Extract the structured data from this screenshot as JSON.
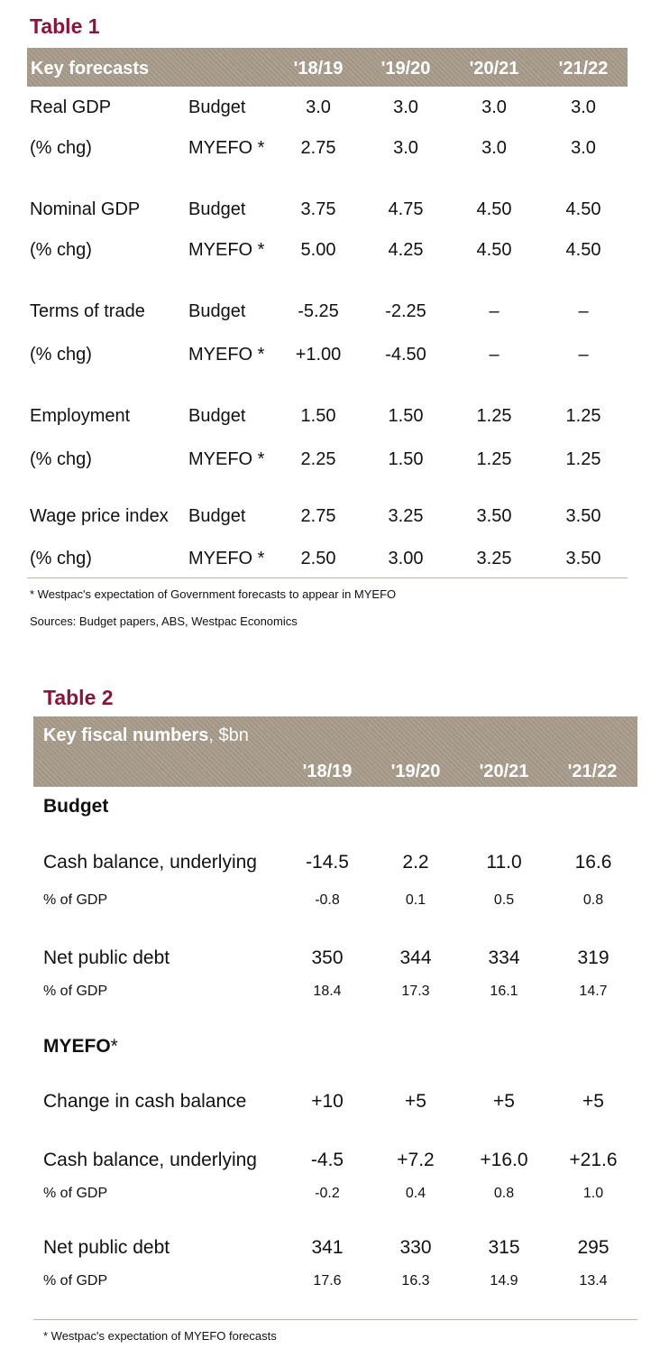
{
  "table1": {
    "title": "Table 1",
    "header": {
      "label": "Key forecasts",
      "years": [
        "'18/19",
        "'19/20",
        "'20/21",
        "'21/22"
      ]
    },
    "groups": [
      {
        "name": "Real GDP",
        "sub": "(% chg)",
        "budget": {
          "label": "Budget",
          "values": [
            "3.0",
            "3.0",
            "3.0",
            "3.0"
          ]
        },
        "myefo": {
          "label": "MYEFO *",
          "values": [
            "2.75",
            "3.0",
            "3.0",
            "3.0"
          ]
        }
      },
      {
        "name": "Nominal GDP",
        "sub": "(% chg)",
        "budget": {
          "label": "Budget",
          "values": [
            "3.75",
            "4.75",
            "4.50",
            "4.50"
          ]
        },
        "myefo": {
          "label": "MYEFO *",
          "values": [
            "5.00",
            "4.25",
            "4.50",
            "4.50"
          ]
        }
      },
      {
        "name": "Terms of trade",
        "sub": "(% chg)",
        "budget": {
          "label": "Budget",
          "values": [
            "-5.25",
            "-2.25",
            "–",
            "–"
          ]
        },
        "myefo": {
          "label": "MYEFO *",
          "values": [
            "+1.00",
            "-4.50",
            "–",
            "–"
          ]
        }
      },
      {
        "name": "Employment",
        "sub": "(% chg)",
        "budget": {
          "label": "Budget",
          "values": [
            "1.50",
            "1.50",
            "1.25",
            "1.25"
          ]
        },
        "myefo": {
          "label": "MYEFO *",
          "values": [
            "2.25",
            "1.50",
            "1.25",
            "1.25"
          ]
        }
      },
      {
        "name": "Wage price index",
        "sub": "(% chg)",
        "budget": {
          "label": "Budget",
          "values": [
            "2.75",
            "3.25",
            "3.50",
            "3.50"
          ]
        },
        "myefo": {
          "label": "MYEFO *",
          "values": [
            "2.50",
            "3.00",
            "3.25",
            "3.50"
          ]
        }
      }
    ],
    "footnote": "* Westpac's expectation of Government forecasts to appear in MYEFO",
    "sources": "Sources: Budget papers, ABS, Westpac Economics"
  },
  "table2": {
    "title": "Table 2",
    "header": {
      "label_bold": "Key fiscal numbers",
      "label_rest": ", $bn",
      "years": [
        "'18/19",
        "'19/20",
        "'20/21",
        "'21/22"
      ]
    },
    "budget_section": "Budget",
    "budget_rows": [
      {
        "label": "Cash balance, underlying",
        "values": [
          "-14.5",
          "2.2",
          "11.0",
          "16.6"
        ],
        "size": "big"
      },
      {
        "label": "% of GDP",
        "values": [
          "-0.8",
          "0.1",
          "0.5",
          "0.8"
        ],
        "size": "small"
      },
      {
        "label": "Net public debt",
        "values": [
          "350",
          "344",
          "334",
          "319"
        ],
        "size": "big"
      },
      {
        "label": "% of GDP",
        "values": [
          "18.4",
          "17.3",
          "16.1",
          "14.7"
        ],
        "size": "small"
      }
    ],
    "myefo_section": "MYEFO",
    "myefo_section_mark": "*",
    "myefo_rows": [
      {
        "label": "Change in cash balance",
        "values": [
          "+10",
          "+5",
          "+5",
          "+5"
        ],
        "size": "big"
      },
      {
        "label": "Cash balance, underlying",
        "values": [
          "-4.5",
          "+7.2",
          "+16.0",
          "+21.6"
        ],
        "size": "big"
      },
      {
        "label": "% of GDP",
        "values": [
          "-0.2",
          "0.4",
          "0.8",
          "1.0"
        ],
        "size": "small"
      },
      {
        "label": "Net public debt",
        "values": [
          "341",
          "330",
          "315",
          "295"
        ],
        "size": "big"
      },
      {
        "label": "% of GDP",
        "values": [
          "17.6",
          "16.3",
          "14.9",
          "13.4"
        ],
        "size": "small"
      }
    ],
    "footnote": "* Westpac's expectation of MYEFO forecasts"
  }
}
